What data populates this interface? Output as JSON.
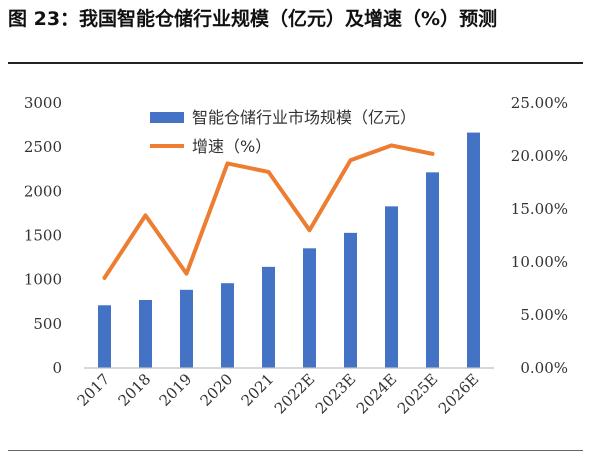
{
  "header": {
    "title": "图 23：我国智能仓储行业规模（亿元）及增速（%）预测"
  },
  "colors": {
    "bar": "#4472C4",
    "line": "#ED7D31",
    "axis": "#BFBFBF"
  },
  "chart_data": {
    "type": "bar",
    "title": "",
    "xlabel": "",
    "ylabel": "",
    "categories": [
      "2017",
      "2018",
      "2019",
      "2020",
      "2021",
      "2022E",
      "2023E",
      "2024E",
      "2025E",
      "2026E"
    ],
    "series": [
      {
        "name": "智能仓储行业市场规模（亿元）",
        "type": "bar",
        "axis": "left",
        "values": [
          710,
          770,
          885,
          960,
          1145,
          1355,
          1530,
          1830,
          2215,
          2665
        ]
      },
      {
        "name": "增速（%）",
        "type": "line",
        "axis": "right",
        "values": [
          8.5,
          14.4,
          8.9,
          19.3,
          18.5,
          13.0,
          19.6,
          21.0,
          20.2,
          null
        ]
      }
    ],
    "ylim": [
      0,
      3000
    ],
    "yticks": [
      "0",
      "500",
      "1000",
      "1500",
      "2000",
      "2500",
      "3000"
    ],
    "y2lim": [
      0,
      25
    ],
    "y2ticks": [
      "0.00%",
      "5.00%",
      "10.00%",
      "15.00%",
      "20.00%",
      "25.00%"
    ],
    "grid": false,
    "legend": "top-center"
  }
}
